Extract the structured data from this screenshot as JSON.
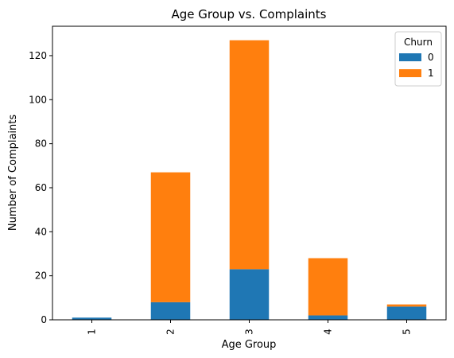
{
  "chart_data": {
    "type": "bar",
    "stacked": true,
    "title": "Age Group vs. Complaints",
    "xlabel": "Age Group",
    "ylabel": "Number of Complaints",
    "categories": [
      "1",
      "2",
      "3",
      "4",
      "5"
    ],
    "series": [
      {
        "name": "0",
        "color": "#1f77b4",
        "values": [
          1,
          8,
          23,
          2,
          6
        ]
      },
      {
        "name": "1",
        "color": "#ff7f0e",
        "values": [
          0,
          59,
          104,
          26,
          1
        ]
      }
    ],
    "ylim": [
      0,
      133.35
    ],
    "yticks": [
      0,
      20,
      40,
      60,
      80,
      100,
      120
    ],
    "legend": {
      "title": "Churn",
      "placement": "top-right"
    },
    "grid": false
  }
}
